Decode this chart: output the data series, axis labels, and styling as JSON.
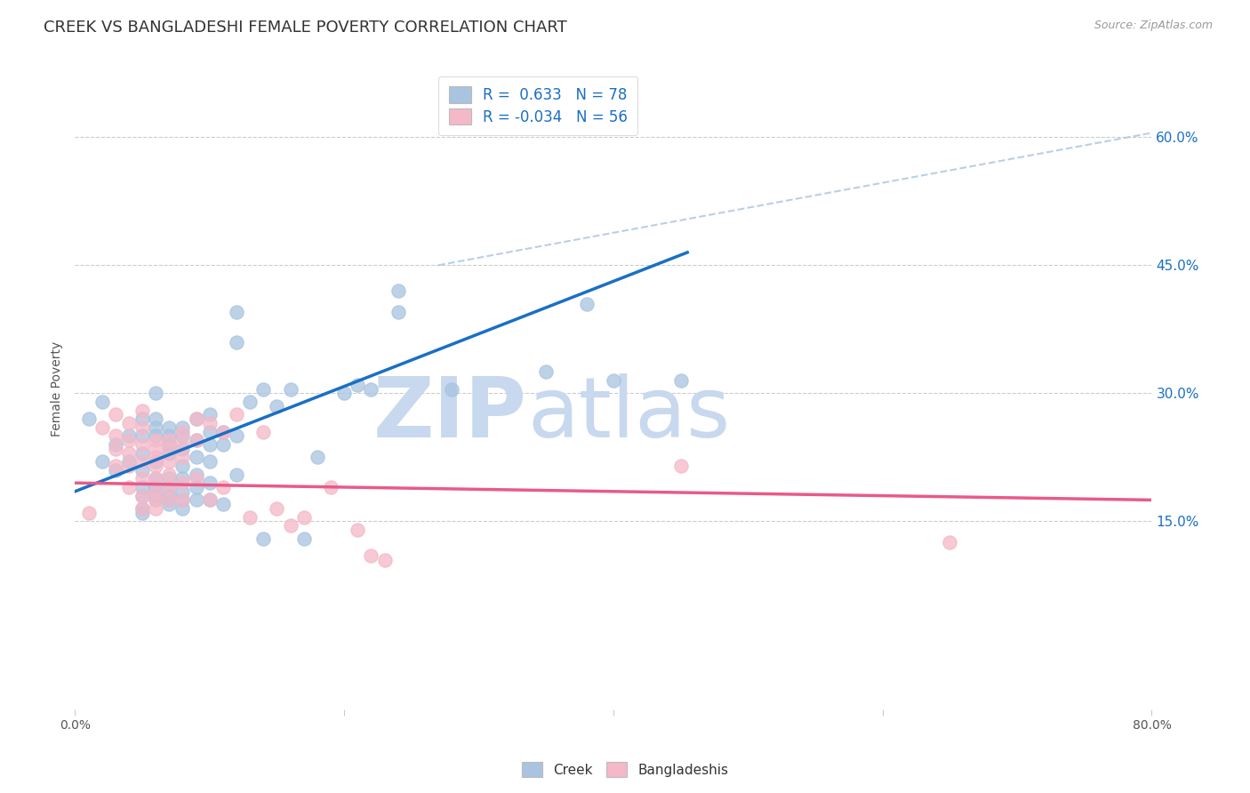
{
  "title": "CREEK VS BANGLADESHI FEMALE POVERTY CORRELATION CHART",
  "source": "Source: ZipAtlas.com",
  "ylabel": "Female Poverty",
  "yticks": [
    "15.0%",
    "30.0%",
    "45.0%",
    "60.0%"
  ],
  "ytick_vals": [
    0.15,
    0.3,
    0.45,
    0.6
  ],
  "xlim": [
    0.0,
    0.8
  ],
  "ylim": [
    -0.07,
    0.68
  ],
  "creek_R": 0.633,
  "creek_N": 78,
  "bangladeshi_R": -0.034,
  "bangladeshi_N": 56,
  "creek_color": "#a8c4e0",
  "bangladeshi_color": "#f4b8c8",
  "creek_line_color": "#1a6fc4",
  "bangladeshi_line_color": "#e85a8a",
  "diagonal_line_color": "#a8c4e0",
  "background_color": "#ffffff",
  "creek_line_x0": 0.0,
  "creek_line_y0": 0.185,
  "creek_line_x1": 0.455,
  "creek_line_y1": 0.465,
  "bangladeshi_line_x0": 0.0,
  "bangladeshi_line_y0": 0.195,
  "bangladeshi_line_x1": 0.8,
  "bangladeshi_line_y1": 0.175,
  "diag_line_x0": 0.27,
  "diag_line_y0": 0.45,
  "diag_line_x1": 0.8,
  "diag_line_y1": 0.605,
  "creek_scatter": [
    [
      0.02,
      0.29
    ],
    [
      0.01,
      0.27
    ],
    [
      0.03,
      0.24
    ],
    [
      0.02,
      0.22
    ],
    [
      0.03,
      0.21
    ],
    [
      0.04,
      0.25
    ],
    [
      0.04,
      0.22
    ],
    [
      0.05,
      0.25
    ],
    [
      0.05,
      0.27
    ],
    [
      0.05,
      0.23
    ],
    [
      0.05,
      0.21
    ],
    [
      0.05,
      0.19
    ],
    [
      0.05,
      0.18
    ],
    [
      0.05,
      0.165
    ],
    [
      0.05,
      0.16
    ],
    [
      0.06,
      0.3
    ],
    [
      0.06,
      0.27
    ],
    [
      0.06,
      0.26
    ],
    [
      0.06,
      0.25
    ],
    [
      0.06,
      0.22
    ],
    [
      0.06,
      0.2
    ],
    [
      0.06,
      0.19
    ],
    [
      0.06,
      0.185
    ],
    [
      0.06,
      0.18
    ],
    [
      0.06,
      0.175
    ],
    [
      0.07,
      0.26
    ],
    [
      0.07,
      0.25
    ],
    [
      0.07,
      0.24
    ],
    [
      0.07,
      0.23
    ],
    [
      0.07,
      0.2
    ],
    [
      0.07,
      0.19
    ],
    [
      0.07,
      0.18
    ],
    [
      0.07,
      0.175
    ],
    [
      0.07,
      0.17
    ],
    [
      0.08,
      0.26
    ],
    [
      0.08,
      0.25
    ],
    [
      0.08,
      0.235
    ],
    [
      0.08,
      0.215
    ],
    [
      0.08,
      0.2
    ],
    [
      0.08,
      0.185
    ],
    [
      0.08,
      0.175
    ],
    [
      0.08,
      0.165
    ],
    [
      0.09,
      0.27
    ],
    [
      0.09,
      0.245
    ],
    [
      0.09,
      0.225
    ],
    [
      0.09,
      0.205
    ],
    [
      0.09,
      0.19
    ],
    [
      0.09,
      0.175
    ],
    [
      0.1,
      0.275
    ],
    [
      0.1,
      0.255
    ],
    [
      0.1,
      0.24
    ],
    [
      0.1,
      0.22
    ],
    [
      0.1,
      0.195
    ],
    [
      0.1,
      0.175
    ],
    [
      0.11,
      0.255
    ],
    [
      0.11,
      0.24
    ],
    [
      0.11,
      0.17
    ],
    [
      0.12,
      0.395
    ],
    [
      0.12,
      0.36
    ],
    [
      0.12,
      0.25
    ],
    [
      0.12,
      0.205
    ],
    [
      0.13,
      0.29
    ],
    [
      0.14,
      0.305
    ],
    [
      0.14,
      0.13
    ],
    [
      0.15,
      0.285
    ],
    [
      0.16,
      0.305
    ],
    [
      0.17,
      0.13
    ],
    [
      0.18,
      0.225
    ],
    [
      0.2,
      0.3
    ],
    [
      0.21,
      0.31
    ],
    [
      0.22,
      0.305
    ],
    [
      0.24,
      0.42
    ],
    [
      0.24,
      0.395
    ],
    [
      0.28,
      0.305
    ],
    [
      0.35,
      0.325
    ],
    [
      0.38,
      0.405
    ],
    [
      0.4,
      0.315
    ],
    [
      0.45,
      0.315
    ]
  ],
  "bangladeshi_scatter": [
    [
      0.01,
      0.16
    ],
    [
      0.02,
      0.26
    ],
    [
      0.03,
      0.275
    ],
    [
      0.03,
      0.25
    ],
    [
      0.03,
      0.235
    ],
    [
      0.03,
      0.215
    ],
    [
      0.04,
      0.265
    ],
    [
      0.04,
      0.245
    ],
    [
      0.04,
      0.23
    ],
    [
      0.04,
      0.215
    ],
    [
      0.04,
      0.19
    ],
    [
      0.05,
      0.28
    ],
    [
      0.05,
      0.26
    ],
    [
      0.05,
      0.24
    ],
    [
      0.05,
      0.22
    ],
    [
      0.05,
      0.2
    ],
    [
      0.05,
      0.18
    ],
    [
      0.05,
      0.165
    ],
    [
      0.06,
      0.245
    ],
    [
      0.06,
      0.235
    ],
    [
      0.06,
      0.225
    ],
    [
      0.06,
      0.215
    ],
    [
      0.06,
      0.2
    ],
    [
      0.06,
      0.185
    ],
    [
      0.06,
      0.175
    ],
    [
      0.06,
      0.165
    ],
    [
      0.07,
      0.245
    ],
    [
      0.07,
      0.235
    ],
    [
      0.07,
      0.22
    ],
    [
      0.07,
      0.205
    ],
    [
      0.07,
      0.19
    ],
    [
      0.07,
      0.175
    ],
    [
      0.08,
      0.255
    ],
    [
      0.08,
      0.24
    ],
    [
      0.08,
      0.225
    ],
    [
      0.08,
      0.195
    ],
    [
      0.08,
      0.175
    ],
    [
      0.09,
      0.27
    ],
    [
      0.09,
      0.245
    ],
    [
      0.09,
      0.2
    ],
    [
      0.1,
      0.265
    ],
    [
      0.1,
      0.175
    ],
    [
      0.11,
      0.255
    ],
    [
      0.11,
      0.19
    ],
    [
      0.12,
      0.275
    ],
    [
      0.13,
      0.155
    ],
    [
      0.14,
      0.255
    ],
    [
      0.15,
      0.165
    ],
    [
      0.16,
      0.145
    ],
    [
      0.17,
      0.155
    ],
    [
      0.19,
      0.19
    ],
    [
      0.21,
      0.14
    ],
    [
      0.22,
      0.11
    ],
    [
      0.23,
      0.105
    ],
    [
      0.45,
      0.215
    ],
    [
      0.65,
      0.125
    ]
  ],
  "title_fontsize": 13,
  "axis_label_fontsize": 10,
  "tick_fontsize": 10,
  "legend_fontsize": 12
}
